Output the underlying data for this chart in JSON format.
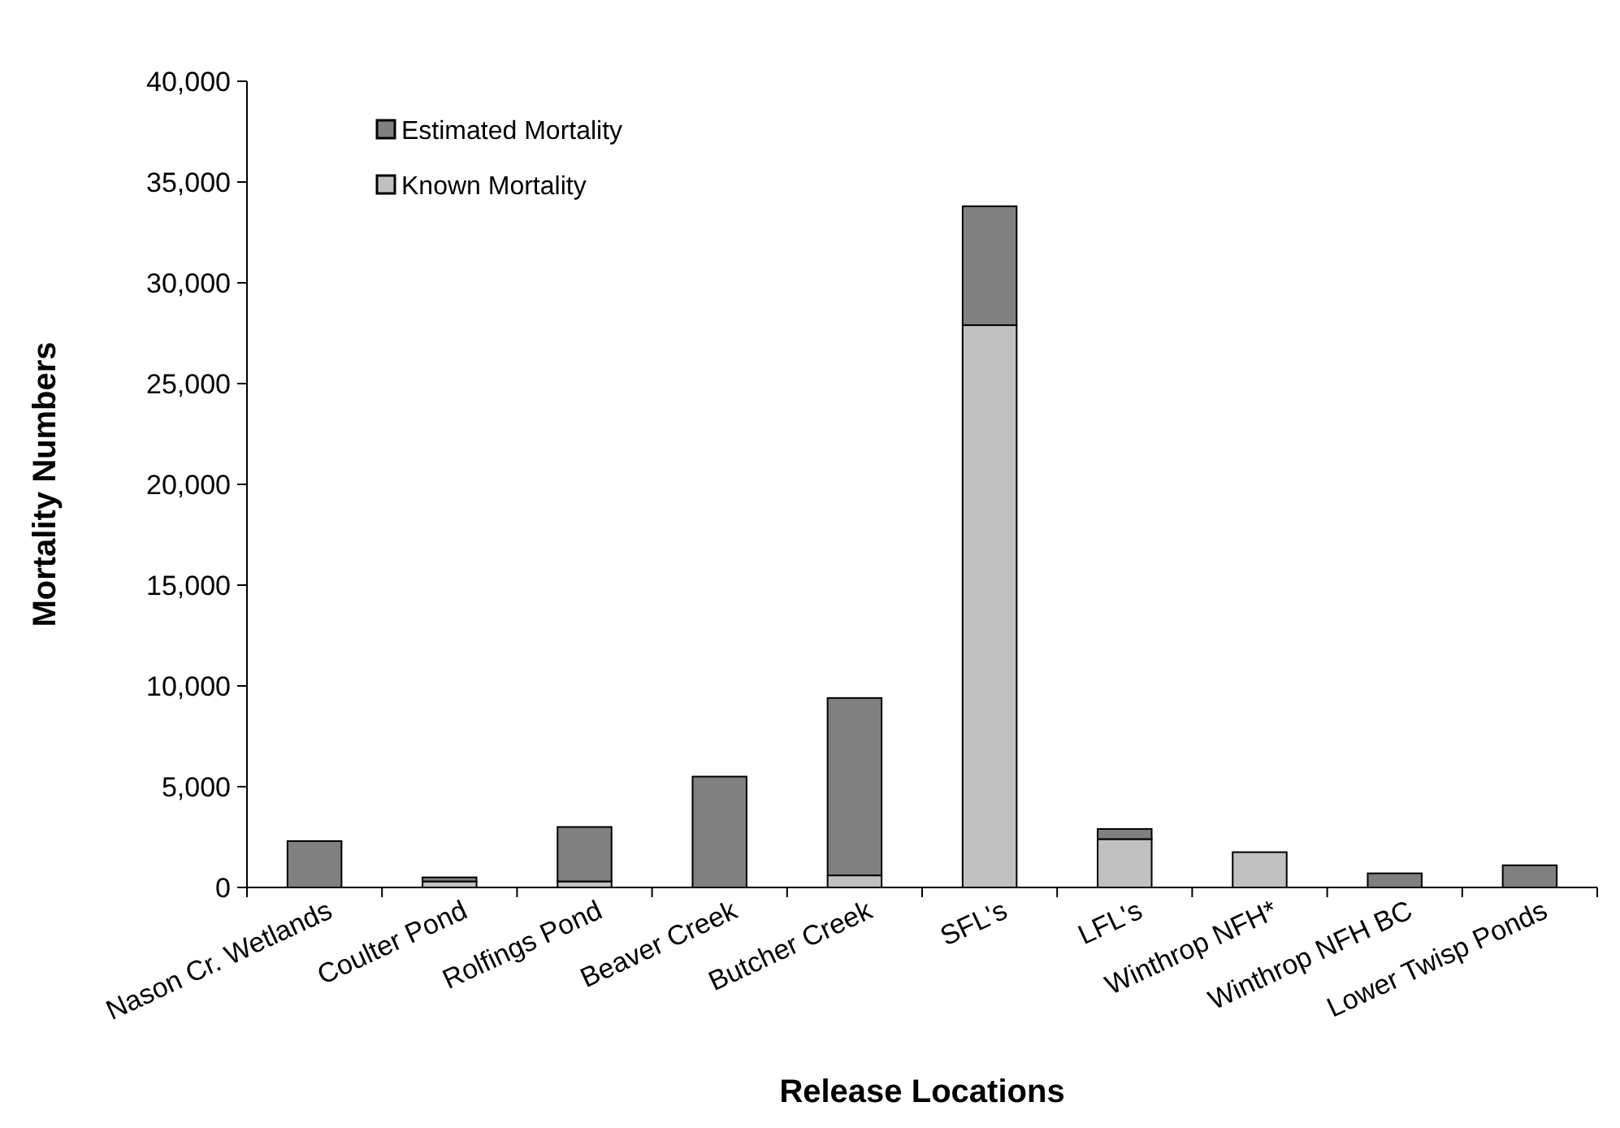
{
  "chart_data": {
    "type": "bar",
    "stacked": true,
    "xlabel": "Release Locations",
    "ylabel": "Mortality Numbers",
    "categories": [
      "Nason Cr. Wetlands",
      "Coulter Pond",
      "Rolfings Pond",
      "Beaver Creek",
      "Butcher Creek",
      "SFL's",
      "LFL's",
      "Winthrop NFH*",
      "Winthrop NFH BC",
      "Lower Twisp Ponds"
    ],
    "series": [
      {
        "name": "Known Mortality",
        "color": "#c0c0c0",
        "values": [
          0,
          300,
          300,
          0,
          600,
          27900,
          2400,
          1750,
          0,
          0
        ]
      },
      {
        "name": "Estimated Mortality",
        "color": "#808080",
        "values": [
          2300,
          200,
          2700,
          5500,
          8800,
          5900,
          500,
          0,
          700,
          1100
        ]
      }
    ],
    "ylim": [
      0,
      40000
    ],
    "yticks": [
      {
        "value": 0,
        "label": "0"
      },
      {
        "value": 5000,
        "label": "5,000"
      },
      {
        "value": 10000,
        "label": "10,000"
      },
      {
        "value": 15000,
        "label": "15,000"
      },
      {
        "value": 20000,
        "label": "20,000"
      },
      {
        "value": 25000,
        "label": "25,000"
      },
      {
        "value": 30000,
        "label": "30,000"
      },
      {
        "value": 35000,
        "label": "35,000"
      },
      {
        "value": 40000,
        "label": "40,000"
      }
    ],
    "grid": false,
    "legend": "top left"
  }
}
